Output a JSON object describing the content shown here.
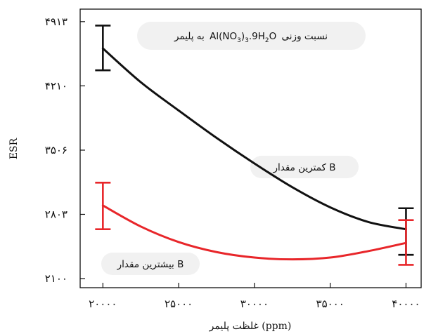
{
  "chart_data": {
    "type": "line",
    "title": "",
    "xlabel": "غلظت پلیمر (ppm)",
    "ylabel": "ESR",
    "xlim": [
      18500,
      41000
    ],
    "ylim": [
      2000,
      5050
    ],
    "x_ticks": [
      {
        "value": 20000,
        "label": "۲۰۰۰۰"
      },
      {
        "value": 25000,
        "label": "۲۵۰۰۰"
      },
      {
        "value": 30000,
        "label": "۳۰۰۰۰"
      },
      {
        "value": 35000,
        "label": "۳۵۰۰۰"
      },
      {
        "value": 40000,
        "label": "۴۰۰۰۰"
      }
    ],
    "y_ticks": [
      {
        "value": 2100,
        "label": "۲۱۰۰"
      },
      {
        "value": 2803,
        "label": "۲۸۰۳"
      },
      {
        "value": 3506,
        "label": "۳۵۰۶"
      },
      {
        "value": 4210,
        "label": "۴۲۱۰"
      },
      {
        "value": 4913,
        "label": "۴۹۱۳"
      }
    ],
    "grid": false,
    "series": [
      {
        "color": "#111111",
        "x": [
          20000,
          22500,
          25000,
          27500,
          30000,
          32500,
          35000,
          37500,
          40000
        ],
        "y": [
          4620,
          4250,
          3940,
          3640,
          3360,
          3100,
          2880,
          2720,
          2640
        ],
        "error_bars": [
          {
            "x": 20000,
            "low": 4380,
            "high": 4870
          },
          {
            "x": 40000,
            "low": 2360,
            "high": 2870
          }
        ]
      },
      {
        "color": "#e8262a",
        "x": [
          20000,
          22500,
          25000,
          27500,
          30000,
          32500,
          35000,
          37500,
          40000
        ],
        "y": [
          2900,
          2670,
          2500,
          2390,
          2330,
          2310,
          2330,
          2400,
          2490
        ],
        "error_bars": [
          {
            "x": 20000,
            "low": 2640,
            "high": 3150
          },
          {
            "x": 40000,
            "low": 2250,
            "high": 2740
          }
        ]
      }
    ],
    "annotations": {
      "ratio_note": {
        "text_before": "نسبت وزنی",
        "formula": [
          "Al(NO",
          "3",
          ")",
          "3",
          ".9H",
          "2",
          "O"
        ],
        "text_after": "به پلیمر"
      },
      "min_b_note": "کمترین مقدار B",
      "max_b_note": "بیشترین مقدار B"
    }
  }
}
